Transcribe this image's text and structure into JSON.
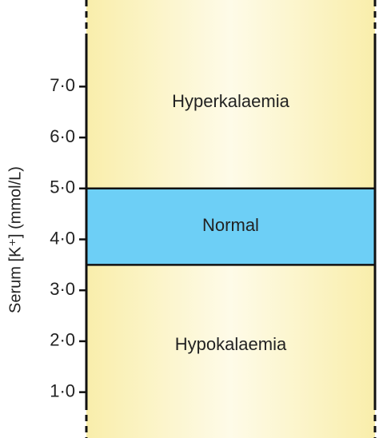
{
  "chart_data": {
    "type": "band",
    "ylabel": "Serum [K⁺] (mmol/L)",
    "ylim": [
      0.1,
      8.7
    ],
    "yticks": [
      {
        "value": 1,
        "label": "1·0"
      },
      {
        "value": 2,
        "label": "2·0"
      },
      {
        "value": 3,
        "label": "3·0"
      },
      {
        "value": 4,
        "label": "4·0"
      },
      {
        "value": 5,
        "label": "5·0"
      },
      {
        "value": 6,
        "label": "6·0"
      },
      {
        "value": 7,
        "label": "7·0"
      }
    ],
    "bands": [
      {
        "name": "Hypokalaemia",
        "color": "#fcf3c0",
        "max": 3.5
      },
      {
        "name": "Normal",
        "color": "#6dcff6",
        "min": 3.5,
        "max": 5.0
      },
      {
        "name": "Hyperkalaemia",
        "color": "#fcf3c0",
        "min": 5.0
      }
    ]
  }
}
